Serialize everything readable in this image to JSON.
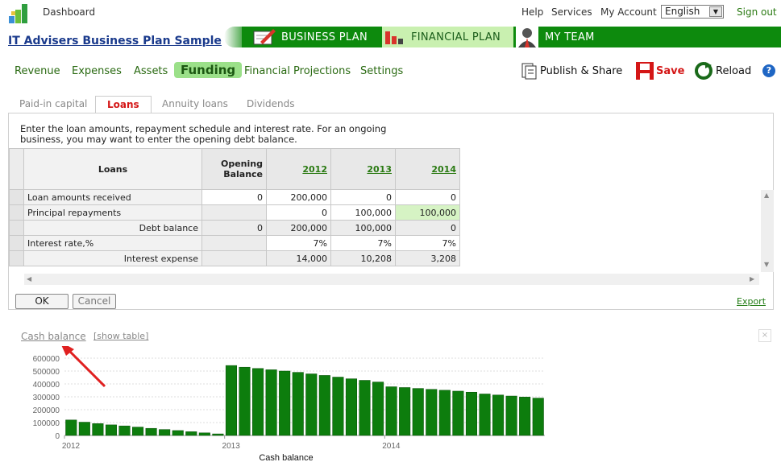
{
  "topbar": {
    "dashboard": "Dashboard",
    "help": "Help",
    "services": "Services",
    "account": "My Account",
    "language": "English",
    "signout": "Sign out"
  },
  "header": {
    "title": "IT Advisers Business Plan Sample",
    "sections": [
      {
        "label": "BUSINESS PLAN"
      },
      {
        "label": "FINANCIAL PLAN"
      },
      {
        "label": "MY TEAM"
      }
    ]
  },
  "menu": {
    "items": [
      "Revenue",
      "Expenses",
      "Assets",
      "Funding",
      "Financial Projections",
      "Settings"
    ],
    "active": "Funding"
  },
  "toolbar": {
    "publish": "Publish & Share",
    "save": "Save",
    "reload": "Reload",
    "help": "?"
  },
  "subtabs": {
    "items": [
      "Paid-in capital",
      "Loans",
      "Annuity loans",
      "Dividends"
    ],
    "active": "Loans"
  },
  "description": "Enter the loan amounts, repayment schedule and interest rate. For an ongoing business, you may want to enter the opening debt balance.",
  "table": {
    "header": {
      "label": "Loans",
      "opening": "Opening Balance",
      "years": [
        "2012",
        "2013",
        "2014"
      ]
    },
    "rows": [
      {
        "label": "Loan amounts received",
        "opening": "0",
        "values": [
          "200,000",
          "0",
          "0"
        ]
      },
      {
        "label": "Principal repayments",
        "opening": "",
        "values": [
          "0",
          "100,000",
          "100,000"
        ]
      },
      {
        "label": "Debt balance",
        "opening": "0",
        "values": [
          "200,000",
          "100,000",
          "0"
        ]
      },
      {
        "label": "Interest rate,%",
        "opening": "",
        "values": [
          "7%",
          "7%",
          "7%"
        ]
      },
      {
        "label": "Interest expense",
        "opening": "",
        "values": [
          "14,000",
          "10,208",
          "3,208"
        ]
      }
    ]
  },
  "buttons": {
    "ok": "OK",
    "cancel": "Cancel",
    "export": "Export"
  },
  "chart_section": {
    "title": "Cash balance",
    "show_table": "[show table]",
    "close": "×"
  },
  "chart_data": {
    "type": "bar",
    "title": "",
    "xlabel": "Cash balance",
    "ylabel": "",
    "ylim": [
      0,
      600000
    ],
    "yticks": [
      "0",
      "100000",
      "200000",
      "300000",
      "400000",
      "500000",
      "600000"
    ],
    "xticks": [
      "2012",
      "2013",
      "2014"
    ],
    "bar_color": "#0d7d0d",
    "values": [
      120000,
      103000,
      92000,
      82000,
      74000,
      65000,
      55000,
      46000,
      38000,
      29000,
      20000,
      12000,
      543000,
      530000,
      520000,
      510000,
      500000,
      490000,
      478000,
      466000,
      453000,
      440000,
      428000,
      415000,
      378000,
      372000,
      365000,
      358000,
      351000,
      344000,
      336000,
      322000,
      314000,
      306000,
      298000,
      290000
    ]
  }
}
